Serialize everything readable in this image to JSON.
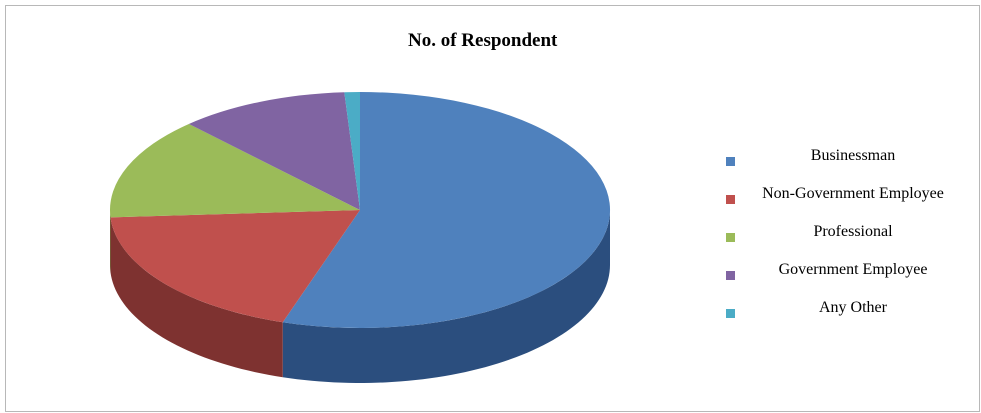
{
  "chart_data": {
    "type": "pie",
    "title": "No. of Respondent",
    "categories": [
      "Businessman",
      "Non-Government Employee",
      "Professional",
      "Government Employee",
      "Any Other"
    ],
    "values": [
      55,
      19,
      14,
      11,
      1
    ],
    "colors": [
      "#4F81BD",
      "#C0504D",
      "#9BBB59",
      "#8064A2",
      "#4BACC6"
    ],
    "side_colors": [
      "#2B4E7E",
      "#7E3230",
      "#667A3A",
      "#52406B",
      "#2E7485"
    ],
    "three_d": true,
    "legend_position": "right"
  }
}
